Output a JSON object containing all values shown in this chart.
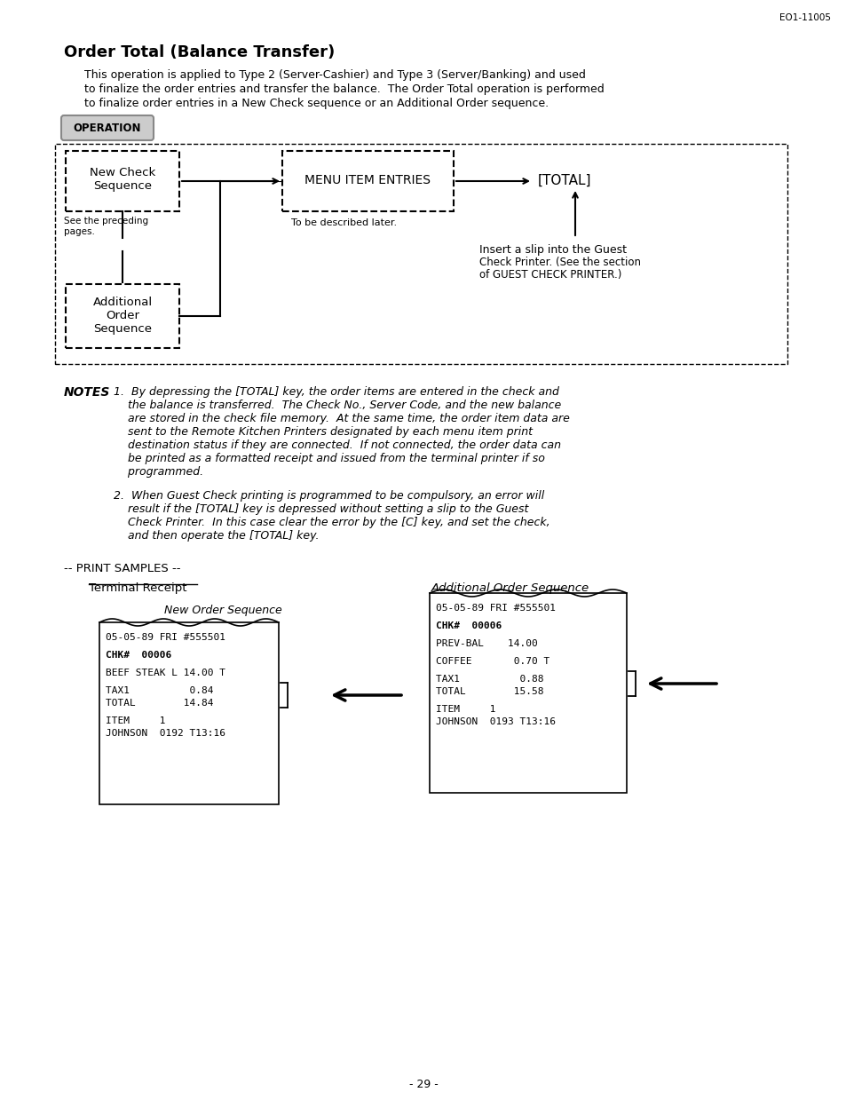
{
  "page_id": "EO1-11005",
  "title": "Order Total (Balance Transfer)",
  "intro_line1": "This operation is applied to Type 2 (Server-Cashier) and Type 3 (Server/Banking) and used",
  "intro_line2": "to finalize the order entries and transfer the balance.  The Order Total operation is performed",
  "intro_line3": "to finalize order entries in a New Check sequence or an Additional Order sequence.",
  "operation_label": "OPERATION",
  "flow_box1_text": "New Check\nSequence",
  "flow_middle_text": "MENU ITEM ENTRIES",
  "flow_end_text": "[TOTAL]",
  "flow_note1": "See the preceding\npages.",
  "flow_note2": "To be described later.",
  "flow_note3_line1": "Insert a slip into the Guest",
  "flow_note3_line2": "Check Printer. (See the section",
  "flow_note3_line3": "of GUEST CHECK PRINTER.)",
  "flow_box2_text": "Additional\nOrder\nSequence",
  "notes_label": "NOTES",
  "note1_lines": [
    "1.  By depressing the [TOTAL] key, the order items are entered in the check and",
    "    the balance is transferred.  The Check No., Server Code, and the new balance",
    "    are stored in the check file memory.  At the same time, the order item data are",
    "    sent to the Remote Kitchen Printers designated by each menu item print",
    "    destination status if they are connected.  If not connected, the order data can",
    "    be printed as a formatted receipt and issued from the terminal printer if so",
    "    programmed."
  ],
  "note2_lines": [
    "2.  When Guest Check printing is programmed to be compulsory, an error will",
    "    result if the [TOTAL] key is depressed without setting a slip to the Guest",
    "    Check Printer.  In this case clear the error by the [C] key, and set the check,",
    "    and then operate the [TOTAL] key."
  ],
  "print_samples_label": "-- PRINT SAMPLES --",
  "terminal_receipt_label": "Terminal Receipt",
  "new_order_label": "New Order Sequence",
  "additional_order_label": "Additional Order Sequence",
  "receipt1_lines": [
    "05-05-89 FRI #555501",
    "",
    "CHK#  00006",
    "",
    "BEEF STEAK L 14.00 T",
    "",
    "TAX1          0.84",
    "TOTAL        14.84",
    "",
    "ITEM     1",
    "JOHNSON  0192 T13:16"
  ],
  "receipt1_bold_idx": [
    2
  ],
  "receipt2_lines": [
    "05-05-89 FRI #555501",
    "",
    "CHK#  00006",
    "",
    "PREV-BAL    14.00",
    "",
    "COFFEE       0.70 T",
    "",
    "TAX1          0.88",
    "TOTAL        15.58",
    "",
    "ITEM     1",
    "JOHNSON  0193 T13:16"
  ],
  "receipt2_bold_idx": [
    2
  ],
  "page_number": "- 29 -",
  "background_color": "#ffffff"
}
